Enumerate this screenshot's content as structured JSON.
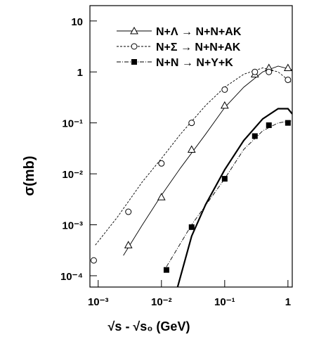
{
  "chart_data": {
    "type": "scatter",
    "log_x": true,
    "log_y": true,
    "x_label": "√s - √s₀ (GeV)",
    "y_label": "σ(mb)",
    "xlim": [
      0.00074,
      1.17
    ],
    "ylim": [
      6e-05,
      20
    ],
    "xticks": [
      {
        "value": 0.001,
        "label": "10⁻³"
      },
      {
        "value": 0.01,
        "label": "10⁻²"
      },
      {
        "value": 0.1,
        "label": "10⁻¹"
      },
      1
    ],
    "yticks": [
      {
        "value": 0.0001,
        "label": "10⁻⁴"
      },
      {
        "value": 0.001,
        "label": "10⁻³"
      },
      {
        "value": 0.01,
        "label": "10⁻²"
      },
      {
        "value": 0.1,
        "label": "10⁻¹"
      },
      1,
      10
    ],
    "series": [
      {
        "name": "N+Λ → N+N+AK",
        "marker": "triangle",
        "color": "#000000",
        "dash": "none",
        "x": [
          0.003,
          0.01,
          0.03,
          0.1,
          0.3,
          0.5,
          1
        ],
        "values": [
          0.0004,
          0.0035,
          0.03,
          0.22,
          0.9,
          1.2,
          1.2
        ],
        "fit": {
          "x": [
            0.0025,
            0.005,
            0.01,
            0.02,
            0.05,
            0.1,
            0.2,
            0.4,
            0.7,
            1.17
          ],
          "values": [
            0.00025,
            0.001,
            0.0038,
            0.013,
            0.06,
            0.2,
            0.5,
            1.0,
            1.3,
            1.1
          ]
        }
      },
      {
        "name": "N+Σ → N+N+AK",
        "marker": "circle",
        "color": "#000000",
        "dash": "3 2",
        "x": [
          0.00085,
          0.003,
          0.01,
          0.03,
          0.1,
          0.3,
          0.5,
          1
        ],
        "values": [
          0.0002,
          0.0018,
          0.016,
          0.1,
          0.45,
          1.0,
          1.0,
          0.7
        ],
        "fit": {
          "x": [
            0.0009,
            0.002,
            0.005,
            0.01,
            0.02,
            0.05,
            0.1,
            0.2,
            0.4,
            0.7,
            1.17
          ],
          "values": [
            0.0004,
            0.0014,
            0.007,
            0.02,
            0.06,
            0.22,
            0.5,
            0.9,
            1.2,
            1.0,
            0.6
          ]
        }
      },
      {
        "name": "N+N → N+Y+K",
        "marker": "square",
        "color": "#000000",
        "dash": "6 2 1 2",
        "x": [
          0.012,
          0.03,
          0.1,
          0.3,
          0.5,
          1
        ],
        "values": [
          0.00013,
          0.0009,
          0.008,
          0.055,
          0.09,
          0.1
        ],
        "fit": {
          "x": [
            0.012,
            0.03,
            0.1,
            0.2,
            0.4,
            0.7,
            1.17
          ],
          "values": [
            0.00015,
            0.001,
            0.008,
            0.03,
            0.07,
            0.1,
            0.11
          ]
        }
      }
    ],
    "curves": [
      {
        "x": [
          0.018,
          0.03,
          0.05,
          0.1,
          0.2,
          0.4,
          0.7,
          1.0,
          1.17
        ],
        "values": [
          6e-05,
          0.0006,
          0.0025,
          0.012,
          0.045,
          0.12,
          0.19,
          0.19,
          0.15
        ],
        "color": "#000000",
        "width": 2.2
      }
    ]
  }
}
